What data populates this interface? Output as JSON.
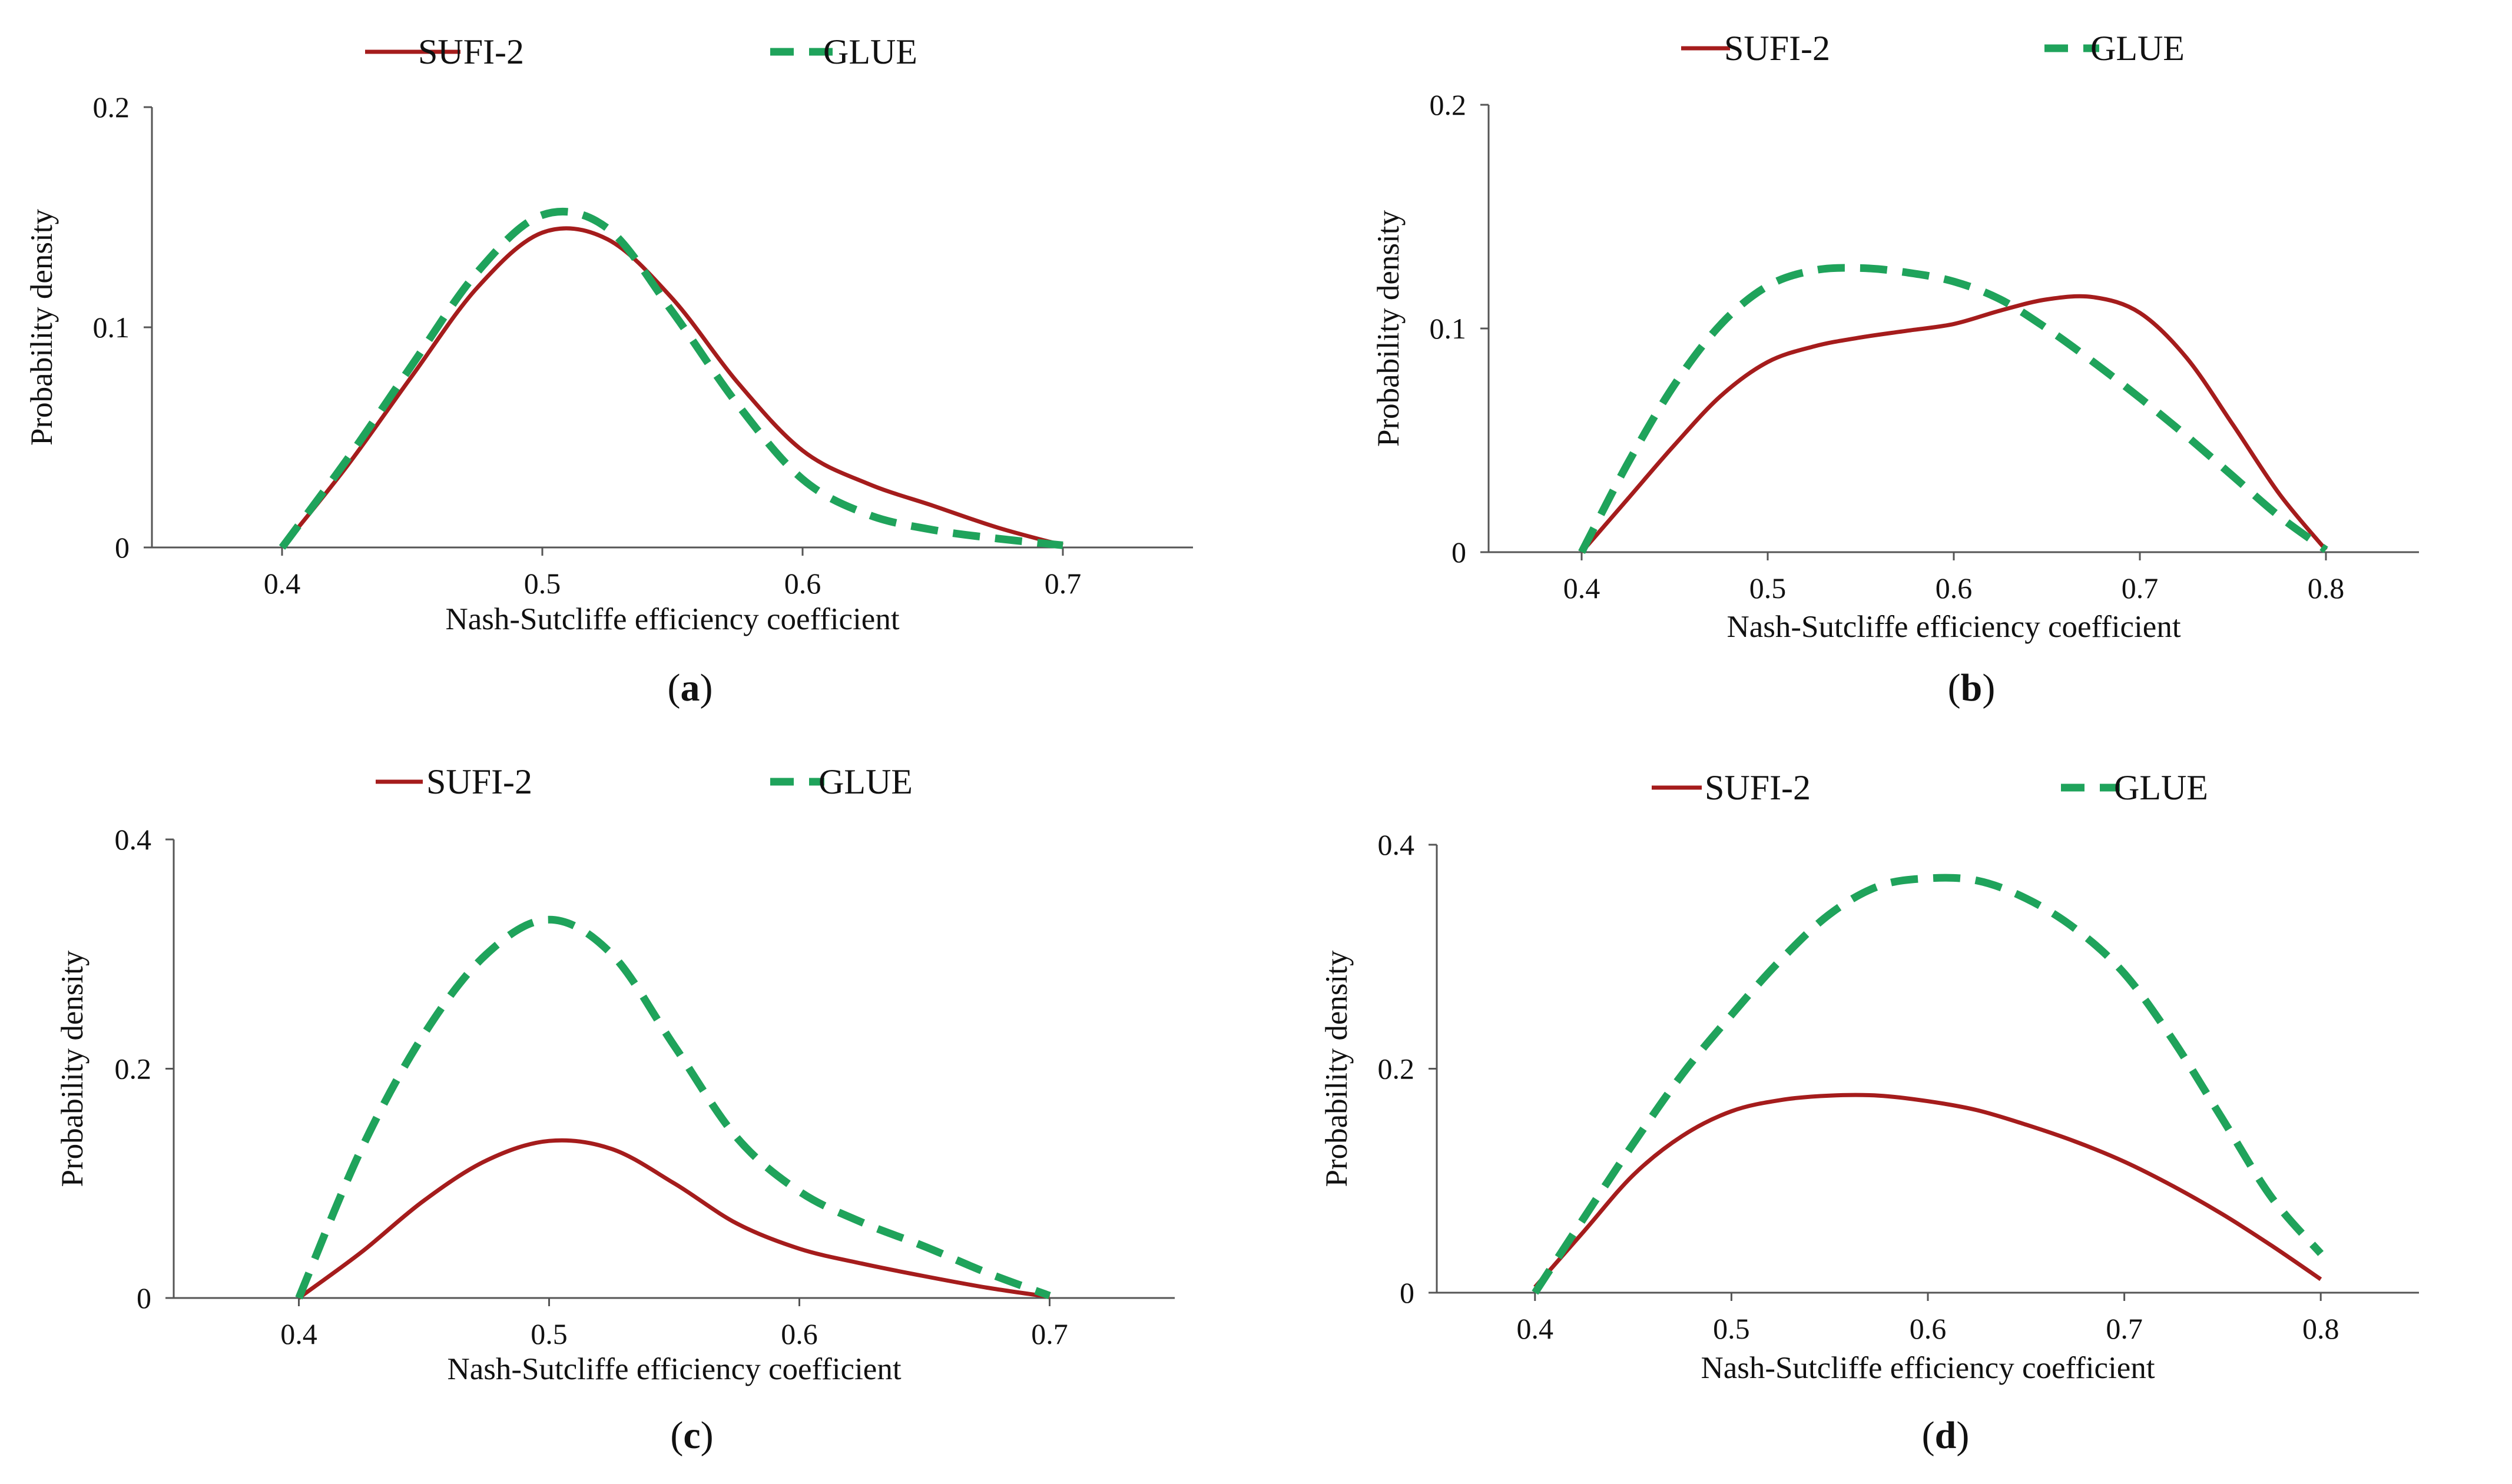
{
  "colors": {
    "sufi": "#A51C1C",
    "glue": "#1FA35B",
    "axis": "#555555"
  },
  "chart_data": [
    {
      "type": "line",
      "panel_label": "(a)",
      "xlabel": "Nash-Sutcliffe efficiency coefficient",
      "ylabel": "Probability density",
      "xlim": [
        0.35,
        0.75
      ],
      "ylim": [
        0,
        0.2
      ],
      "xticks": [
        0.4,
        0.5,
        0.6,
        0.7
      ],
      "xtick_labels": [
        "0.4",
        "0.5",
        "0.6",
        "0.7"
      ],
      "yticks": [
        0,
        0.1,
        0.2
      ],
      "ytick_labels": [
        "0",
        "0.1",
        "0.2"
      ],
      "legend": [
        "SUFI-2",
        "GLUE"
      ],
      "series": [
        {
          "name": "SUFI-2",
          "style": "solid",
          "x": [
            0.4,
            0.425,
            0.45,
            0.475,
            0.5,
            0.525,
            0.55,
            0.575,
            0.6,
            0.625,
            0.65,
            0.675,
            0.7
          ],
          "y": [
            0,
            0.037,
            0.078,
            0.118,
            0.143,
            0.14,
            0.113,
            0.075,
            0.044,
            0.029,
            0.019,
            0.009,
            0.001
          ]
        },
        {
          "name": "GLUE",
          "style": "dashed",
          "x": [
            0.4,
            0.425,
            0.45,
            0.475,
            0.5,
            0.525,
            0.55,
            0.575,
            0.6,
            0.625,
            0.65,
            0.675,
            0.7
          ],
          "y": [
            0,
            0.04,
            0.083,
            0.125,
            0.151,
            0.145,
            0.107,
            0.065,
            0.031,
            0.015,
            0.008,
            0.004,
            0.001
          ]
        }
      ]
    },
    {
      "type": "line",
      "panel_label": "(b)",
      "xlabel": "Nash-Sutcliffe efficiency coefficient",
      "ylabel": "Probability density",
      "xlim": [
        0.35,
        0.85
      ],
      "ylim": [
        0,
        0.2
      ],
      "xticks": [
        0.4,
        0.5,
        0.6,
        0.7,
        0.8
      ],
      "xtick_labels": [
        "0.4",
        "0.5",
        "0.6",
        "0.7",
        "0.8"
      ],
      "yticks": [
        0,
        0.1,
        0.2
      ],
      "ytick_labels": [
        "0",
        "0.1",
        "0.2"
      ],
      "legend": [
        "SUFI-2",
        "GLUE"
      ],
      "series": [
        {
          "name": "SUFI-2",
          "style": "solid",
          "x": [
            0.4,
            0.425,
            0.45,
            0.475,
            0.5,
            0.525,
            0.55,
            0.575,
            0.6,
            0.625,
            0.65,
            0.675,
            0.7,
            0.725,
            0.75,
            0.775,
            0.8
          ],
          "y": [
            0,
            0.024,
            0.048,
            0.07,
            0.085,
            0.092,
            0.096,
            0.099,
            0.102,
            0.108,
            0.113,
            0.114,
            0.107,
            0.087,
            0.057,
            0.026,
            0.001
          ]
        },
        {
          "name": "GLUE",
          "style": "dashed",
          "x": [
            0.4,
            0.425,
            0.45,
            0.475,
            0.5,
            0.525,
            0.55,
            0.575,
            0.6,
            0.625,
            0.65,
            0.675,
            0.7,
            0.725,
            0.75,
            0.775,
            0.8
          ],
          "y": [
            0,
            0.04,
            0.075,
            0.102,
            0.119,
            0.126,
            0.127,
            0.125,
            0.121,
            0.113,
            0.1,
            0.085,
            0.069,
            0.052,
            0.034,
            0.016,
            0.001
          ]
        }
      ]
    },
    {
      "type": "line",
      "panel_label": "(c)",
      "xlabel": "Nash-Sutcliffe efficiency coefficient",
      "ylabel": "Probability density",
      "xlim": [
        0.35,
        0.75
      ],
      "ylim": [
        0,
        0.4
      ],
      "xticks": [
        0.4,
        0.5,
        0.6,
        0.7
      ],
      "xtick_labels": [
        "0.4",
        "0.5",
        "0.6",
        "0.7"
      ],
      "yticks": [
        0,
        0.2,
        0.4
      ],
      "ytick_labels": [
        "0",
        "0.2",
        "0.4"
      ],
      "legend": [
        "SUFI-2",
        "GLUE"
      ],
      "series": [
        {
          "name": "SUFI-2",
          "style": "solid",
          "x": [
            0.4,
            0.425,
            0.45,
            0.475,
            0.5,
            0.525,
            0.55,
            0.575,
            0.6,
            0.625,
            0.65,
            0.675,
            0.7
          ],
          "y": [
            0,
            0.04,
            0.085,
            0.12,
            0.137,
            0.13,
            0.1,
            0.065,
            0.043,
            0.03,
            0.019,
            0.009,
            0.001
          ]
        },
        {
          "name": "GLUE",
          "style": "dashed",
          "x": [
            0.4,
            0.425,
            0.45,
            0.475,
            0.5,
            0.525,
            0.55,
            0.575,
            0.6,
            0.625,
            0.65,
            0.675,
            0.7
          ],
          "y": [
            0,
            0.13,
            0.23,
            0.3,
            0.33,
            0.3,
            0.22,
            0.14,
            0.093,
            0.066,
            0.045,
            0.022,
            0.002
          ]
        }
      ]
    },
    {
      "type": "line",
      "panel_label": "(d)",
      "xlabel": "Nash-Sutcliffe efficiency coefficient",
      "ylabel": "Probability density",
      "xlim": [
        0.35,
        0.85
      ],
      "ylim": [
        0,
        0.4
      ],
      "xticks": [
        0.4,
        0.5,
        0.6,
        0.7,
        0.8
      ],
      "xtick_labels": [
        "0.4",
        "0.5",
        "0.6",
        "0.7",
        "0.8"
      ],
      "yticks": [
        0,
        0.2,
        0.4
      ],
      "ytick_labels": [
        "0",
        "0.2",
        "0.4"
      ],
      "legend": [
        "SUFI-2",
        "GLUE"
      ],
      "series": [
        {
          "name": "SUFI-2",
          "style": "solid",
          "x": [
            0.4,
            0.425,
            0.45,
            0.475,
            0.5,
            0.525,
            0.55,
            0.575,
            0.6,
            0.625,
            0.65,
            0.675,
            0.7,
            0.725,
            0.75,
            0.775,
            0.8
          ],
          "y": [
            0.005,
            0.055,
            0.105,
            0.14,
            0.162,
            0.172,
            0.176,
            0.176,
            0.171,
            0.163,
            0.15,
            0.135,
            0.117,
            0.095,
            0.07,
            0.042,
            0.012
          ]
        },
        {
          "name": "GLUE",
          "style": "dashed",
          "x": [
            0.4,
            0.425,
            0.45,
            0.475,
            0.5,
            0.525,
            0.55,
            0.575,
            0.6,
            0.625,
            0.65,
            0.675,
            0.7,
            0.725,
            0.75,
            0.775,
            0.8
          ],
          "y": [
            0,
            0.067,
            0.133,
            0.195,
            0.248,
            0.297,
            0.338,
            0.363,
            0.37,
            0.368,
            0.352,
            0.325,
            0.285,
            0.225,
            0.155,
            0.085,
            0.035
          ]
        }
      ]
    }
  ]
}
